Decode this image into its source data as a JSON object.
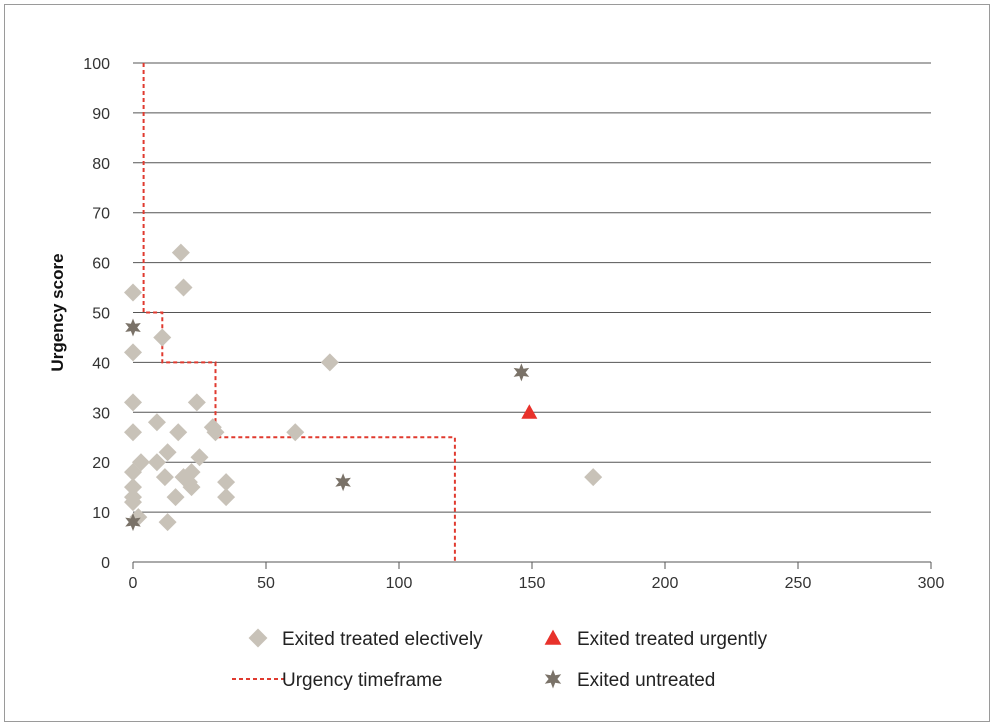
{
  "chart_data": {
    "type": "scatter",
    "title": "",
    "xlabel": "",
    "ylabel": "Urgency score",
    "xlim": [
      0,
      300
    ],
    "ylim": [
      0,
      100
    ],
    "xticks": [
      0,
      50,
      100,
      150,
      200,
      250,
      300
    ],
    "yticks": [
      0,
      10,
      20,
      30,
      40,
      50,
      60,
      70,
      80,
      90,
      100
    ],
    "grid": "horizontal",
    "legend_position": "bottom",
    "series": [
      {
        "name": "Exited treated electively",
        "marker": "diamond",
        "color": "#c8c2b8",
        "points": [
          [
            0,
            54
          ],
          [
            0,
            42
          ],
          [
            0,
            32
          ],
          [
            0,
            26
          ],
          [
            0,
            18
          ],
          [
            0,
            15
          ],
          [
            0,
            13
          ],
          [
            0,
            12
          ],
          [
            2,
            9
          ],
          [
            3,
            20
          ],
          [
            9,
            28
          ],
          [
            9,
            20
          ],
          [
            11,
            45
          ],
          [
            12,
            17
          ],
          [
            13,
            22
          ],
          [
            13,
            8
          ],
          [
            16,
            13
          ],
          [
            17,
            26
          ],
          [
            18,
            62
          ],
          [
            19,
            55
          ],
          [
            19,
            17
          ],
          [
            21,
            16
          ],
          [
            22,
            18
          ],
          [
            22,
            15
          ],
          [
            24,
            32
          ],
          [
            25,
            21
          ],
          [
            30,
            27
          ],
          [
            31,
            26
          ],
          [
            35,
            16
          ],
          [
            35,
            13
          ],
          [
            61,
            26
          ],
          [
            74,
            40
          ],
          [
            173,
            17
          ]
        ]
      },
      {
        "name": "Exited treated urgently",
        "marker": "triangle",
        "color": "#e8322b",
        "points": [
          [
            149,
            30
          ]
        ]
      },
      {
        "name": "Urgency timeframe",
        "marker": "dashed-line",
        "color": "#e03a2f",
        "points": [
          [
            4,
            100
          ],
          [
            4,
            50
          ],
          [
            11,
            50
          ],
          [
            11,
            40
          ],
          [
            31,
            40
          ],
          [
            31,
            25
          ],
          [
            121,
            25
          ],
          [
            121,
            0
          ]
        ]
      },
      {
        "name": "Exited untreated",
        "marker": "star",
        "color": "#7a7268",
        "points": [
          [
            0,
            47
          ],
          [
            0,
            8
          ],
          [
            79,
            16
          ],
          [
            146,
            38
          ]
        ]
      }
    ]
  }
}
